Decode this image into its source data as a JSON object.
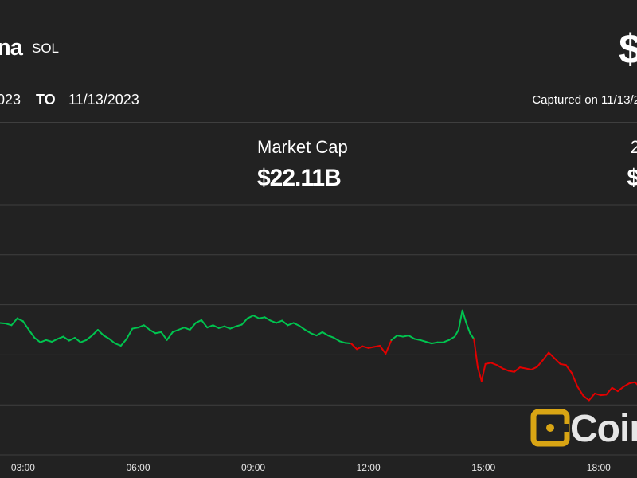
{
  "header": {
    "name_fragment": "na",
    "ticker": "SOL",
    "price_fragment": "$",
    "date_from_fragment": "023",
    "to_label": "TO",
    "date_to": "11/13/2023",
    "captured_fragment": "Captured on 11/13/2"
  },
  "stats": {
    "market_cap_label": "Market Cap",
    "market_cap_value": "$22.11B",
    "right_label_fragment": "2",
    "right_value_fragment": "$"
  },
  "watermark": {
    "text_fragment": "Coir"
  },
  "colors": {
    "background": "#222222",
    "up": "#00c44f",
    "down": "#e20000",
    "grid": "#3f3f3f"
  },
  "chart_data": {
    "type": "line",
    "x_ticks": [
      "03:00",
      "06:00",
      "09:00",
      "12:00",
      "15:00",
      "18:00"
    ],
    "x_tick_hours": [
      3,
      6,
      9,
      12,
      15,
      18
    ],
    "x_range_hours": [
      2.4,
      19.0
    ],
    "y_gridlines": 6,
    "grid": true,
    "series": [
      {
        "color_rule": "green above open, red below open",
        "points": [
          [
            2.4,
            0.56
          ],
          [
            2.55,
            0.555
          ],
          [
            2.7,
            0.54
          ],
          [
            2.85,
            0.6
          ],
          [
            3.0,
            0.575
          ],
          [
            3.15,
            0.5
          ],
          [
            3.3,
            0.43
          ],
          [
            3.45,
            0.39
          ],
          [
            3.6,
            0.41
          ],
          [
            3.75,
            0.395
          ],
          [
            3.9,
            0.42
          ],
          [
            4.05,
            0.44
          ],
          [
            4.2,
            0.405
          ],
          [
            4.35,
            0.43
          ],
          [
            4.5,
            0.39
          ],
          [
            4.65,
            0.41
          ],
          [
            4.8,
            0.45
          ],
          [
            4.95,
            0.5
          ],
          [
            5.1,
            0.45
          ],
          [
            5.25,
            0.42
          ],
          [
            5.4,
            0.38
          ],
          [
            5.55,
            0.36
          ],
          [
            5.7,
            0.42
          ],
          [
            5.85,
            0.51
          ],
          [
            6.0,
            0.52
          ],
          [
            6.15,
            0.54
          ],
          [
            6.3,
            0.5
          ],
          [
            6.45,
            0.47
          ],
          [
            6.6,
            0.48
          ],
          [
            6.75,
            0.41
          ],
          [
            6.9,
            0.48
          ],
          [
            7.05,
            0.5
          ],
          [
            7.2,
            0.52
          ],
          [
            7.35,
            0.5
          ],
          [
            7.5,
            0.56
          ],
          [
            7.65,
            0.585
          ],
          [
            7.8,
            0.52
          ],
          [
            7.95,
            0.54
          ],
          [
            8.1,
            0.515
          ],
          [
            8.25,
            0.53
          ],
          [
            8.4,
            0.51
          ],
          [
            8.55,
            0.53
          ],
          [
            8.7,
            0.545
          ],
          [
            8.85,
            0.6
          ],
          [
            9.0,
            0.625
          ],
          [
            9.15,
            0.6
          ],
          [
            9.3,
            0.61
          ],
          [
            9.45,
            0.58
          ],
          [
            9.6,
            0.56
          ],
          [
            9.75,
            0.58
          ],
          [
            9.9,
            0.54
          ],
          [
            10.05,
            0.56
          ],
          [
            10.2,
            0.535
          ],
          [
            10.35,
            0.5
          ],
          [
            10.5,
            0.47
          ],
          [
            10.65,
            0.45
          ],
          [
            10.8,
            0.48
          ],
          [
            10.95,
            0.45
          ],
          [
            11.1,
            0.43
          ],
          [
            11.25,
            0.4
          ],
          [
            11.4,
            0.385
          ],
          [
            11.55,
            0.38
          ],
          [
            11.7,
            0.33
          ],
          [
            11.85,
            0.355
          ],
          [
            12.0,
            0.34
          ],
          [
            12.15,
            0.35
          ],
          [
            12.3,
            0.36
          ],
          [
            12.45,
            0.29
          ],
          [
            12.6,
            0.41
          ],
          [
            12.75,
            0.45
          ],
          [
            12.9,
            0.44
          ],
          [
            13.05,
            0.45
          ],
          [
            13.2,
            0.42
          ],
          [
            13.35,
            0.41
          ],
          [
            13.5,
            0.395
          ],
          [
            13.65,
            0.38
          ],
          [
            13.8,
            0.39
          ],
          [
            13.95,
            0.39
          ],
          [
            14.1,
            0.41
          ],
          [
            14.25,
            0.44
          ],
          [
            14.35,
            0.5
          ],
          [
            14.45,
            0.67
          ],
          [
            14.55,
            0.56
          ],
          [
            14.65,
            0.47
          ],
          [
            14.75,
            0.42
          ],
          [
            14.85,
            0.17
          ],
          [
            14.95,
            0.05
          ],
          [
            15.05,
            0.2
          ],
          [
            15.2,
            0.21
          ],
          [
            15.35,
            0.19
          ],
          [
            15.5,
            0.16
          ],
          [
            15.65,
            0.14
          ],
          [
            15.8,
            0.13
          ],
          [
            15.95,
            0.17
          ],
          [
            16.1,
            0.16
          ],
          [
            16.25,
            0.15
          ],
          [
            16.4,
            0.175
          ],
          [
            16.55,
            0.235
          ],
          [
            16.7,
            0.3
          ],
          [
            16.85,
            0.25
          ],
          [
            17.0,
            0.2
          ],
          [
            17.15,
            0.19
          ],
          [
            17.3,
            0.12
          ],
          [
            17.45,
            0.0
          ],
          [
            17.6,
            -0.08
          ],
          [
            17.75,
            -0.12
          ],
          [
            17.9,
            -0.06
          ],
          [
            18.05,
            -0.075
          ],
          [
            18.2,
            -0.07
          ],
          [
            18.35,
            -0.01
          ],
          [
            18.5,
            -0.04
          ],
          [
            18.65,
            0.0
          ],
          [
            18.8,
            0.03
          ],
          [
            18.95,
            0.04
          ],
          [
            19.0,
            0.02
          ]
        ]
      }
    ]
  }
}
